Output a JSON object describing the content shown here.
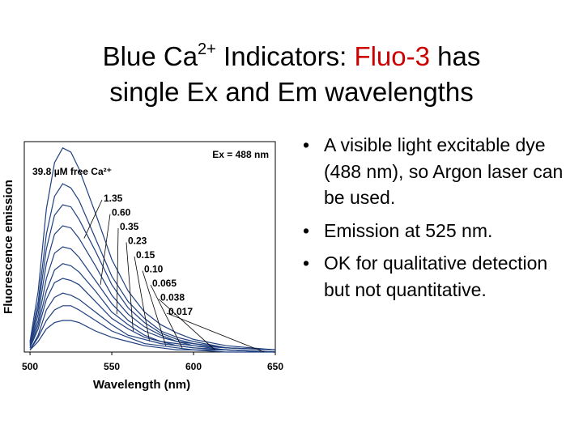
{
  "title": {
    "line1": [
      {
        "text": "Blue Ca"
      },
      {
        "text": "2+",
        "sup": true
      },
      {
        "text": " Indicators: "
      },
      {
        "text": "Fluo-3",
        "color": "#cc0000"
      },
      {
        "text": " has"
      }
    ],
    "line2": "single Ex and Em wavelengths"
  },
  "bullets": [
    "A visible light excitable dye (488 nm), so Argon laser can be used.",
    "Emission at 525 nm.",
    "OK for qualitative detection but not quantitative."
  ],
  "chart_data": {
    "type": "line",
    "xlabel": "Wavelength (nm)",
    "ylabel": "Fluorescence emission",
    "annotation": "Ex = 488 nm",
    "x": [
      500,
      505,
      510,
      515,
      520,
      525,
      530,
      540,
      550,
      560,
      570,
      580,
      590,
      600,
      620,
      650
    ],
    "xlim": [
      496.5,
      650
    ],
    "xticks": [
      500,
      550,
      600,
      650
    ],
    "ylim": [
      0,
      100
    ],
    "color": "#1f3f7f",
    "series": [
      {
        "name": "39.8 µM free Ca²⁺",
        "values": [
          5,
          29,
          68,
          90,
          97,
          95,
          87,
          66,
          44,
          29,
          19,
          13,
          9,
          6,
          3,
          1
        ]
      },
      {
        "name": "1.35",
        "values": [
          4,
          24,
          56,
          74,
          80,
          78,
          72,
          54,
          36,
          24,
          16,
          10,
          7,
          5,
          2,
          1
        ]
      },
      {
        "name": "0.60",
        "values": [
          4,
          21,
          49,
          65,
          70,
          69,
          63,
          48,
          32,
          21,
          14,
          9,
          6,
          4,
          2,
          1
        ]
      },
      {
        "name": "0.35",
        "values": [
          3,
          18,
          42,
          56,
          60,
          59,
          54,
          41,
          27,
          18,
          12,
          8,
          5,
          4,
          2,
          1
        ]
      },
      {
        "name": "0.23",
        "values": [
          3,
          15,
          35,
          47,
          50,
          49,
          45,
          34,
          23,
          15,
          10,
          7,
          5,
          3,
          2,
          1
        ]
      },
      {
        "name": "0.15",
        "values": [
          2,
          13,
          29,
          39,
          42,
          41,
          38,
          29,
          19,
          13,
          8,
          5,
          4,
          3,
          1,
          0
        ]
      },
      {
        "name": "0.10",
        "values": [
          2,
          11,
          25,
          33,
          35,
          34,
          32,
          24,
          16,
          11,
          7,
          5,
          3,
          2,
          1,
          0
        ]
      },
      {
        "name": "0.065",
        "values": [
          1,
          8,
          20,
          26,
          28,
          27,
          25,
          19,
          13,
          8,
          6,
          4,
          3,
          2,
          1,
          0
        ]
      },
      {
        "name": "0.038",
        "values": [
          1,
          7,
          15,
          20,
          22,
          22,
          20,
          15,
          10,
          7,
          4,
          3,
          2,
          1,
          1,
          0
        ]
      },
      {
        "name": "0.017",
        "values": [
          1,
          5,
          11,
          14,
          15,
          15,
          14,
          10,
          7,
          5,
          3,
          2,
          1,
          1,
          0,
          0
        ]
      }
    ]
  }
}
